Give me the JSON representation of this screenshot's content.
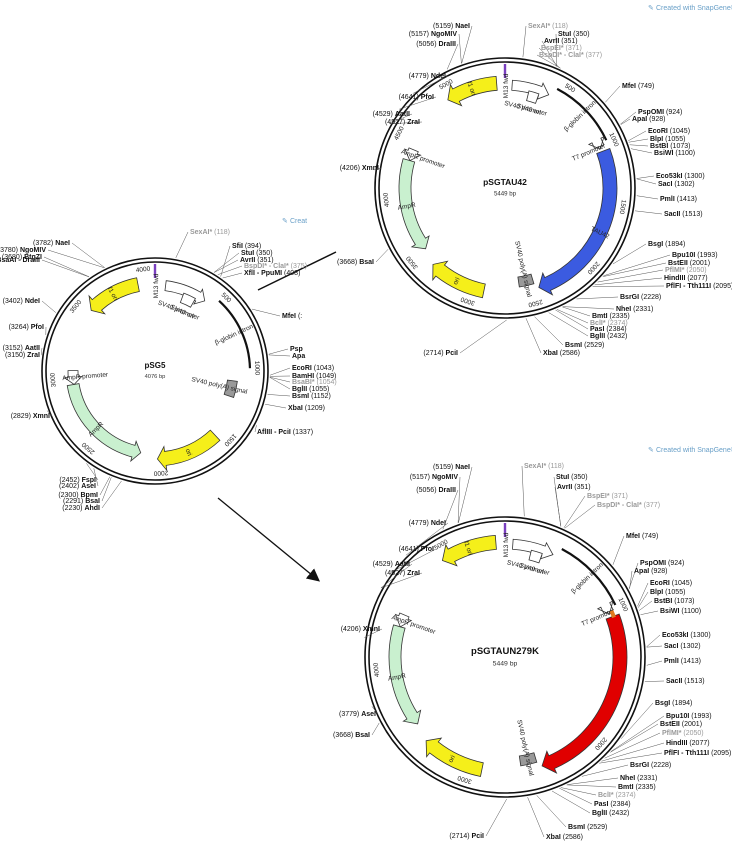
{
  "colors": {
    "fori": "#f5ef1a",
    "ampr": "#c9f0cf",
    "sv40": "#ffffff",
    "promoter": "#ffffff",
    "tau_wt": "#3b5be0",
    "tau_mut": "#e00000",
    "polyA": "#999999",
    "orange_mark": "#e07a20"
  },
  "credit": "Created with SnapGene®",
  "plasmids": [
    {
      "id": "psg5",
      "name": "pSG5",
      "size": "4076 bp",
      "bp": 4076,
      "ticks": [
        "500",
        "1000",
        "1500",
        "2000",
        "2500",
        "3000",
        "3500",
        "4000"
      ],
      "features": [
        {
          "label": "f1 ori",
          "start": 3550,
          "end": 3950,
          "kind": "fori"
        },
        {
          "label": "SV40 promoter",
          "start": 80,
          "end": 400,
          "kind": "promoter"
        },
        {
          "label": "SV40 ori",
          "start": 230,
          "end": 330,
          "kind": "sv40"
        },
        {
          "label": "β-globin intron",
          "start": 480,
          "end": 1000,
          "kind": "line"
        },
        {
          "label": "SV40 poly(A) signal",
          "start": 1100,
          "end": 1230,
          "kind": "polyA"
        },
        {
          "label": "ori",
          "start": 1550,
          "end": 2020,
          "kind": "fori"
        },
        {
          "label": "AmpR",
          "start": 2150,
          "end": 2950,
          "kind": "ampr"
        },
        {
          "label": "AmpR promoter",
          "start": 2950,
          "end": 3060,
          "kind": "promoter"
        },
        {
          "label": "M13 fwd",
          "start": 0,
          "end": 20,
          "kind": "m13"
        }
      ],
      "sites": [
        {
          "t": "SexAI*",
          "p": "(118)",
          "g": true
        },
        {
          "t": "SfiI",
          "p": "(394)"
        },
        {
          "t": "StuI",
          "p": "(350)"
        },
        {
          "t": "AvrII",
          "p": "(351)"
        },
        {
          "t": "BspDI* - ClaI*",
          "p": "(375)",
          "g": true
        },
        {
          "t": "XflI - PpuMI",
          "p": "(408)"
        },
        {
          "t": "MfeI",
          "p": "(:"
        },
        {
          "t": "Psp",
          "p": ""
        },
        {
          "t": "Apa",
          "p": ""
        },
        {
          "t": "EcoRI",
          "p": "(1043)"
        },
        {
          "t": "BamHI",
          "p": "(1049)"
        },
        {
          "t": "BsaBI*",
          "p": "(1054)",
          "g": true
        },
        {
          "t": "BglII",
          "p": "(1055)"
        },
        {
          "t": "BsmI",
          "p": "(1152)"
        },
        {
          "t": "XbaI",
          "p": "(1209)"
        },
        {
          "t": "AflIII - PciI",
          "p": "(1337)"
        },
        {
          "t": "AhdI",
          "p": "(2230)"
        },
        {
          "t": "BsaI",
          "p": "(2291)"
        },
        {
          "t": "BpmI",
          "p": "(2300)"
        },
        {
          "t": "AseI",
          "p": "(2402)"
        },
        {
          "t": "FspI",
          "p": "(2452)"
        },
        {
          "t": "XmnI",
          "p": "(2829)"
        },
        {
          "t": "AatII",
          "p": "(3152)"
        },
        {
          "t": "ZraI",
          "p": "(3150)"
        },
        {
          "t": "PfoI",
          "p": "(3264)"
        },
        {
          "t": "NdeI",
          "p": "(3402)"
        },
        {
          "t": "BsaAI - DraIII",
          "p": "(3679)"
        },
        {
          "t": "BtgZI",
          "p": "(3680)"
        },
        {
          "t": "NgoMIV",
          "p": "(3780)"
        },
        {
          "t": "NaeI",
          "p": "(3782)"
        }
      ]
    },
    {
      "id": "psgtau42",
      "name": "pSGTAU42",
      "size": "5449 bp",
      "bp": 5449,
      "ticks": [
        "500",
        "1000",
        "1500",
        "2000",
        "2500",
        "3000",
        "3500",
        "4000",
        "4500",
        "5000"
      ],
      "features": [
        {
          "label": "f1 ori",
          "start": 4950,
          "end": 5380,
          "kind": "fori"
        },
        {
          "label": "M13 fwd",
          "start": 0,
          "end": 20,
          "kind": "m13"
        },
        {
          "label": "SV40 promoter",
          "start": 60,
          "end": 380,
          "kind": "promoter"
        },
        {
          "label": "SV40 ori",
          "start": 210,
          "end": 300,
          "kind": "sv40"
        },
        {
          "label": "β-globin intron",
          "start": 420,
          "end": 980,
          "kind": "line"
        },
        {
          "label": "T7 promoter",
          "start": 1005,
          "end": 1025,
          "kind": "promoter"
        },
        {
          "label": "TAU42",
          "start": 1050,
          "end": 2440,
          "kind": "tau_wt"
        },
        {
          "label": "SV40 poly(A) signal",
          "start": 2470,
          "end": 2600,
          "kind": "polyA"
        },
        {
          "label": "ori",
          "start": 2900,
          "end": 3380,
          "kind": "fori"
        },
        {
          "label": "AmpR",
          "start": 3520,
          "end": 4330,
          "kind": "ampr"
        },
        {
          "label": "AmpR promoter",
          "start": 4330,
          "end": 4430,
          "kind": "promoter"
        }
      ],
      "sites_right": [
        {
          "t": "SexAI*",
          "p": "(118)",
          "g": true
        },
        {
          "t": "StuI",
          "p": "(350)"
        },
        {
          "t": "AvrII",
          "p": "(351)"
        },
        {
          "t": "BspEI*",
          "p": "(371)",
          "g": true
        },
        {
          "t": "BspDI* - ClaI*",
          "p": "(377)",
          "g": true
        },
        {
          "t": "MfeI",
          "p": "(749)"
        },
        {
          "t": "PspOMI",
          "p": "(924)"
        },
        {
          "t": "ApaI",
          "p": "(928)"
        },
        {
          "t": "EcoRI",
          "p": "(1045)"
        },
        {
          "t": "BlpI",
          "p": "(1055)"
        },
        {
          "t": "BstBI",
          "p": "(1073)"
        },
        {
          "t": "BsiWI",
          "p": "(1100)"
        },
        {
          "t": "Eco53kI",
          "p": "(1300)"
        },
        {
          "t": "SacI",
          "p": "(1302)"
        },
        {
          "t": "PmlI",
          "p": "(1413)"
        },
        {
          "t": "SacII",
          "p": "(1513)"
        },
        {
          "t": "BsgI",
          "p": "(1894)"
        },
        {
          "t": "Bpu10I",
          "p": "(1993)"
        },
        {
          "t": "BstEII",
          "p": "(2001)"
        },
        {
          "t": "PflMI*",
          "p": "(2050)",
          "g": true
        },
        {
          "t": "HindIII",
          "p": "(2077)"
        },
        {
          "t": "PflFI - Tth111I",
          "p": "(2095)"
        },
        {
          "t": "BsrGI",
          "p": "(2228)"
        },
        {
          "t": "NheI",
          "p": "(2331)"
        },
        {
          "t": "BmtI",
          "p": "(2335)"
        },
        {
          "t": "BclI*",
          "p": "(2374)",
          "g": true
        },
        {
          "t": "PasI",
          "p": "(2384)"
        },
        {
          "t": "BglII",
          "p": "(2432)"
        },
        {
          "t": "BsmI",
          "p": "(2529)"
        },
        {
          "t": "XbaI",
          "p": "(2586)"
        }
      ],
      "sites_left": [
        {
          "t": "NaeI",
          "p": "(5159)"
        },
        {
          "t": "NgoMIV",
          "p": "(5157)"
        },
        {
          "t": "DraIII",
          "p": "(5056)"
        },
        {
          "t": "NdeI",
          "p": "(4779)"
        },
        {
          "t": "PfoI",
          "p": "(4641)"
        },
        {
          "t": "AatII",
          "p": "(4529)"
        },
        {
          "t": "ZraI",
          "p": "(4527)"
        },
        {
          "t": "XmnI",
          "p": "(4206)"
        },
        {
          "t": "BsaI",
          "p": "(3668)"
        },
        {
          "t": "PciI",
          "p": "(2714)"
        }
      ]
    },
    {
      "id": "psgtaun279k",
      "name": "pSGTAUN279K",
      "size": "5449 bp",
      "bp": 5449,
      "ticks": [
        "1000",
        "2000",
        "3000",
        "4000",
        "5000"
      ],
      "features": [
        {
          "label": "f1 ori",
          "start": 4950,
          "end": 5380,
          "kind": "fori"
        },
        {
          "label": "M13 fwd",
          "start": 0,
          "end": 20,
          "kind": "m13"
        },
        {
          "label": "SV40 promoter",
          "start": 60,
          "end": 380,
          "kind": "promoter"
        },
        {
          "label": "SV40 ori",
          "start": 210,
          "end": 300,
          "kind": "sv40"
        },
        {
          "label": "β-globin intron",
          "start": 420,
          "end": 980,
          "kind": "line"
        },
        {
          "label": "T7 promoter",
          "start": 1005,
          "end": 1025,
          "kind": "promoter"
        },
        {
          "label": "TAU",
          "start": 1050,
          "end": 2440,
          "kind": "tau_mut"
        },
        {
          "label": "SV40 poly(A) signal",
          "start": 2470,
          "end": 2600,
          "kind": "polyA"
        },
        {
          "label": "ori",
          "start": 2900,
          "end": 3380,
          "kind": "fori"
        },
        {
          "label": "AmpR",
          "start": 3520,
          "end": 4330,
          "kind": "ampr"
        },
        {
          "label": "AmpR promoter",
          "start": 4330,
          "end": 4430,
          "kind": "promoter"
        }
      ],
      "sites_right": [
        {
          "t": "SexAI*",
          "p": "(118)",
          "g": true
        },
        {
          "t": "StuI",
          "p": "(350)"
        },
        {
          "t": "AvrII",
          "p": "(351)"
        },
        {
          "t": "BspEI*",
          "p": "(371)",
          "g": true
        },
        {
          "t": "BspDI* - ClaI*",
          "p": "(377)",
          "g": true
        },
        {
          "t": "MfeI",
          "p": "(749)"
        },
        {
          "t": "PspOMI",
          "p": "(924)"
        },
        {
          "t": "ApaI",
          "p": "(928)"
        },
        {
          "t": "EcoRI",
          "p": "(1045)"
        },
        {
          "t": "BlpI",
          "p": "(1055)"
        },
        {
          "t": "BstBI",
          "p": "(1073)"
        },
        {
          "t": "BsiWI",
          "p": "(1100)"
        },
        {
          "t": "Eco53kI",
          "p": "(1300)"
        },
        {
          "t": "SacI",
          "p": "(1302)"
        },
        {
          "t": "PmlI",
          "p": "(1413)"
        },
        {
          "t": "SacII",
          "p": "(1513)"
        },
        {
          "t": "BsgI",
          "p": "(1894)"
        },
        {
          "t": "Bpu10I",
          "p": "(1993)"
        },
        {
          "t": "BstEII",
          "p": "(2001)"
        },
        {
          "t": "PflMI*",
          "p": "(2050)",
          "g": true
        },
        {
          "t": "HindIII",
          "p": "(2077)"
        },
        {
          "t": "PflFI - Tth111I",
          "p": "(2095)"
        },
        {
          "t": "BsrGI",
          "p": "(2228)"
        },
        {
          "t": "NheI",
          "p": "(2331)"
        },
        {
          "t": "BmtI",
          "p": "(2335)"
        },
        {
          "t": "BclI*",
          "p": "(2374)",
          "g": true
        },
        {
          "t": "PasI",
          "p": "(2384)"
        },
        {
          "t": "BglII",
          "p": "(2432)"
        },
        {
          "t": "BsmI",
          "p": "(2529)"
        },
        {
          "t": "XbaI",
          "p": "(2586)"
        }
      ],
      "sites_left": [
        {
          "t": "NaeI",
          "p": "(5159)"
        },
        {
          "t": "NgoMIV",
          "p": "(5157)"
        },
        {
          "t": "DraIII",
          "p": "(5056)"
        },
        {
          "t": "NdeI",
          "p": "(4779)"
        },
        {
          "t": "PfoI",
          "p": "(4641)"
        },
        {
          "t": "AatII",
          "p": "(4529)"
        },
        {
          "t": "ZraI",
          "p": "(4527)"
        },
        {
          "t": "XmnI",
          "p": "(4206)"
        },
        {
          "t": "AseI",
          "p": "(3779)"
        },
        {
          "t": "BsaI",
          "p": "(3668)"
        },
        {
          "t": "PciI",
          "p": "(2714)"
        }
      ]
    }
  ]
}
